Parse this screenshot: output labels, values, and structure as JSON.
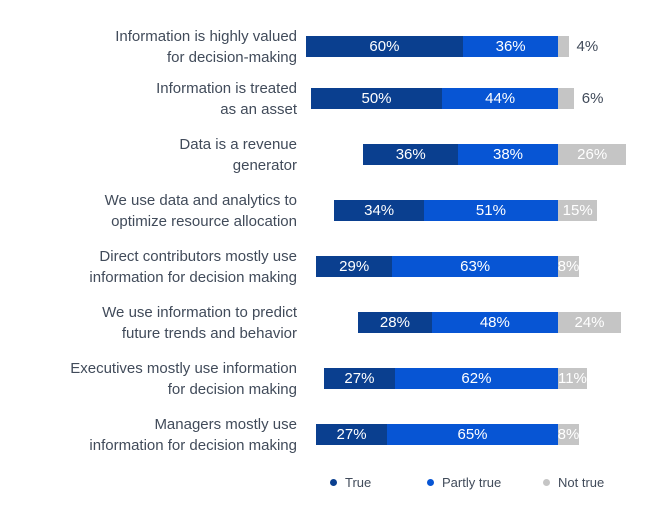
{
  "chart_data": {
    "type": "bar",
    "variant": "horizontal-stacked-100",
    "title": "",
    "categories": [
      "Information is highly valued\nfor decision-making",
      "Information is treated\nas an asset",
      "Data is a revenue\ngenerator",
      "We use data and analytics to\noptimize resource allocation",
      "Direct contributors mostly use\ninformation for decision making",
      "We use information to predict\nfuture trends and behavior",
      "Executives mostly use information\nfor decision making",
      "Managers mostly use\ninformation for decision making"
    ],
    "series": [
      {
        "name": "True",
        "color": "#0A3F8F",
        "values": [
          60,
          50,
          36,
          34,
          29,
          28,
          27,
          27
        ]
      },
      {
        "name": "Partly true",
        "color": "#0755D4",
        "values": [
          36,
          44,
          38,
          51,
          63,
          48,
          62,
          65
        ]
      },
      {
        "name": "Not true",
        "color": "#C5C5C5",
        "values": [
          4,
          6,
          26,
          15,
          8,
          24,
          11,
          8
        ]
      }
    ],
    "value_suffix": "%",
    "legend": [
      "True",
      "Partly true",
      "Not true"
    ],
    "legend_position": "bottom",
    "grid": false,
    "axis_note": "True + Partly true segments are right-aligned to a shared vertical axis; Not true extends to the right of it",
    "value_label_rule": "white labels centered in segments; Not true values under 7% shown outside bar in dark text"
  },
  "colors": {
    "background": "#FFFFFF",
    "series_true": "#0A3F8F",
    "series_partly_true": "#0755D4",
    "series_not_true": "#C5C5C5",
    "text": "#414B5A",
    "value_label_inside": "#FFFFFF"
  }
}
